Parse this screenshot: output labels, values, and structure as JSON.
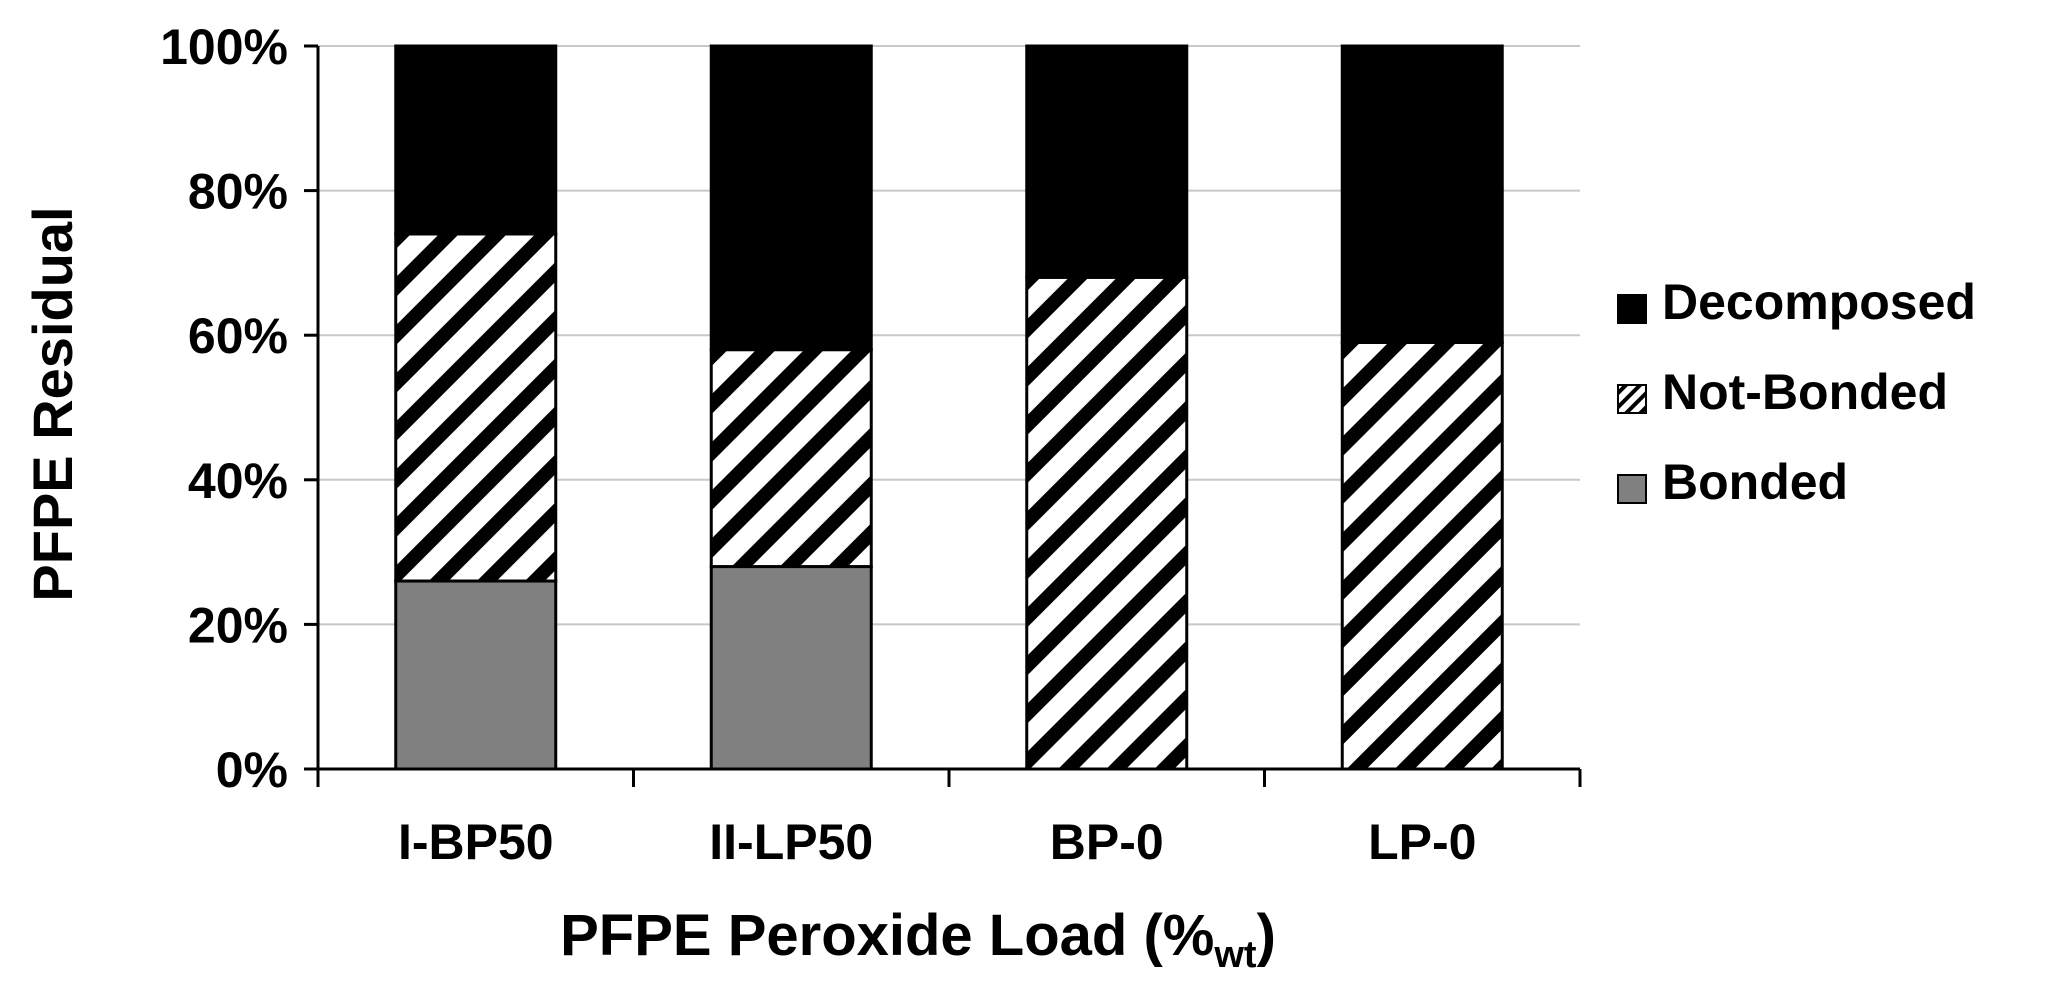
{
  "chart_data": {
    "type": "bar",
    "stacked": true,
    "title": "",
    "xlabel": "PFPE Peroxide Load (%",
    "xlabel_subscript": "wt",
    "xlabel_suffix": ")",
    "ylabel": "PFPE Residual",
    "ylim": [
      0,
      100
    ],
    "yticks": [
      0,
      20,
      40,
      60,
      80,
      100
    ],
    "ytick_labels": [
      "0%",
      "20%",
      "40%",
      "60%",
      "80%",
      "100%"
    ],
    "grid": true,
    "legend_position": "right",
    "categories": [
      "I-BP50",
      "II-LP50",
      "BP-0",
      "LP-0"
    ],
    "series": [
      {
        "name": "Bonded",
        "values": [
          26,
          28,
          0,
          0
        ],
        "color": "#808080",
        "pattern": "solid"
      },
      {
        "name": "Not-Bonded",
        "values": [
          48,
          30,
          68,
          59
        ],
        "color": "#000000",
        "pattern": "diagonal-stripes"
      },
      {
        "name": "Decomposed",
        "values": [
          26,
          42,
          32,
          41
        ],
        "color": "#000000",
        "pattern": "solid"
      }
    ],
    "legend_order": [
      "Decomposed",
      "Not-Bonded",
      "Bonded"
    ]
  }
}
